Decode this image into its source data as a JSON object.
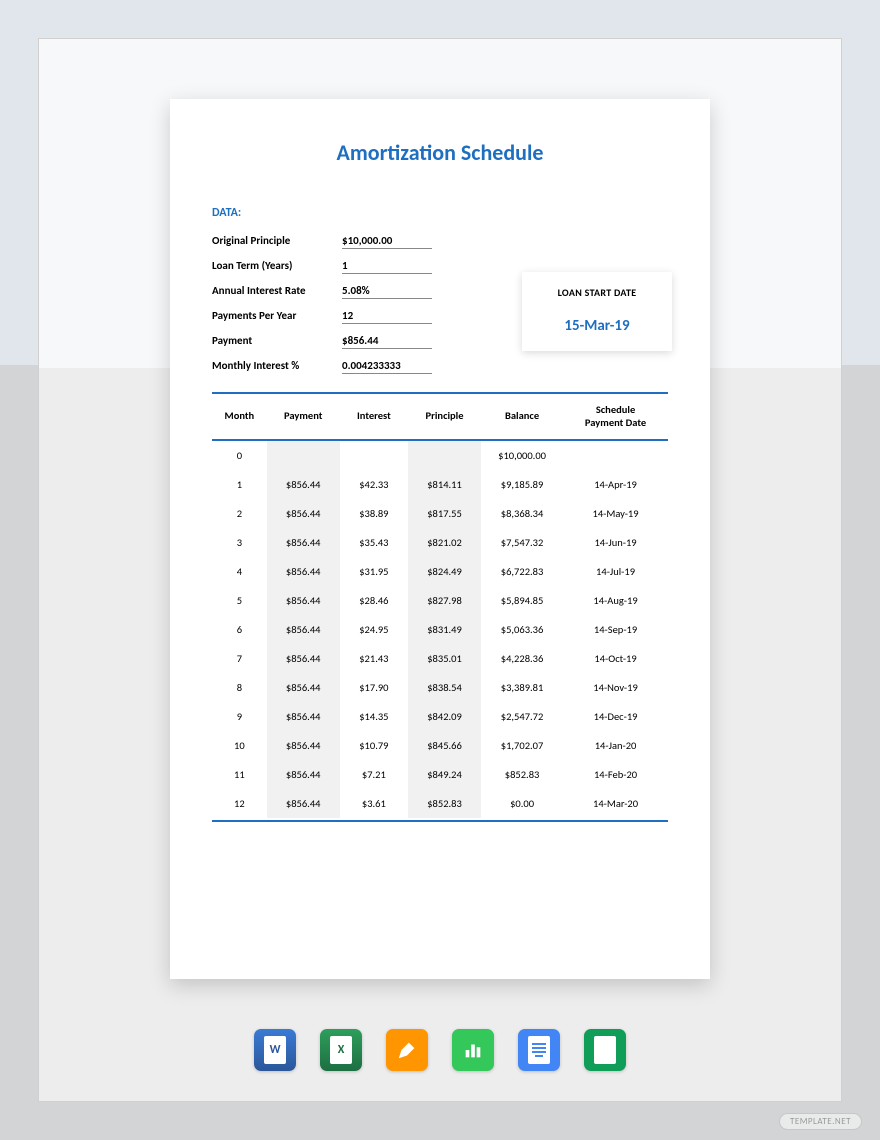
{
  "page": {
    "bg_top": "#e0e6ec",
    "bg_bottom": "#d3d4d5",
    "accent_color": "#1f6fc0"
  },
  "doc": {
    "title": "Amortization Schedule",
    "section_label": "DATA:",
    "loan_start": {
      "label": "LOAN START DATE",
      "value": "15-Mar-19"
    },
    "fields": [
      {
        "label": "Original Principle",
        "value": "$10,000.00"
      },
      {
        "label": "Loan Term (Years)",
        "value": "1"
      },
      {
        "label": "Annual Interest Rate",
        "value": "5.08%"
      },
      {
        "label": "Payments Per Year",
        "value": "12"
      },
      {
        "label": "Payment",
        "value": "$856.44"
      },
      {
        "label": "Monthly Interest %",
        "value": "0.004233333"
      }
    ],
    "table": {
      "columns": [
        "Month",
        "Payment",
        "Interest",
        "Principle",
        "Balance",
        "Schedule Payment Date"
      ],
      "rows": [
        [
          "0",
          "",
          "",
          "",
          "$10,000.00",
          ""
        ],
        [
          "1",
          "$856.44",
          "$42.33",
          "$814.11",
          "$9,185.89",
          "14-Apr-19"
        ],
        [
          "2",
          "$856.44",
          "$38.89",
          "$817.55",
          "$8,368.34",
          "14-May-19"
        ],
        [
          "3",
          "$856.44",
          "$35.43",
          "$821.02",
          "$7,547.32",
          "14-Jun-19"
        ],
        [
          "4",
          "$856.44",
          "$31.95",
          "$824.49",
          "$6,722.83",
          "14-Jul-19"
        ],
        [
          "5",
          "$856.44",
          "$28.46",
          "$827.98",
          "$5,894.85",
          "14-Aug-19"
        ],
        [
          "6",
          "$856.44",
          "$24.95",
          "$831.49",
          "$5,063.36",
          "14-Sep-19"
        ],
        [
          "7",
          "$856.44",
          "$21.43",
          "$835.01",
          "$4,228.36",
          "14-Oct-19"
        ],
        [
          "8",
          "$856.44",
          "$17.90",
          "$838.54",
          "$3,389.81",
          "14-Nov-19"
        ],
        [
          "9",
          "$856.44",
          "$14.35",
          "$842.09",
          "$2,547.72",
          "14-Dec-19"
        ],
        [
          "10",
          "$856.44",
          "$10.79",
          "$845.66",
          "$1,702.07",
          "14-Jan-20"
        ],
        [
          "11",
          "$856.44",
          "$7.21",
          "$849.24",
          "$852.83",
          "14-Feb-20"
        ],
        [
          "12",
          "$856.44",
          "$3.61",
          "$852.83",
          "$0.00",
          "14-Mar-20"
        ]
      ],
      "col_widths": [
        "12%",
        "16%",
        "15%",
        "16%",
        "18%",
        "23%"
      ],
      "shaded_cols": [
        1,
        3
      ],
      "shade_color": "#f1f1f1",
      "rule_color": "#1f6fc0"
    }
  },
  "icons": [
    {
      "name": "word-icon",
      "label": "W"
    },
    {
      "name": "excel-icon",
      "label": "X"
    },
    {
      "name": "pages-icon",
      "label": "pages"
    },
    {
      "name": "numbers-icon",
      "label": "numbers"
    },
    {
      "name": "docs-icon",
      "label": "docs"
    },
    {
      "name": "sheets-icon",
      "label": "sheets"
    }
  ],
  "watermark": "TEMPLATE.NET"
}
